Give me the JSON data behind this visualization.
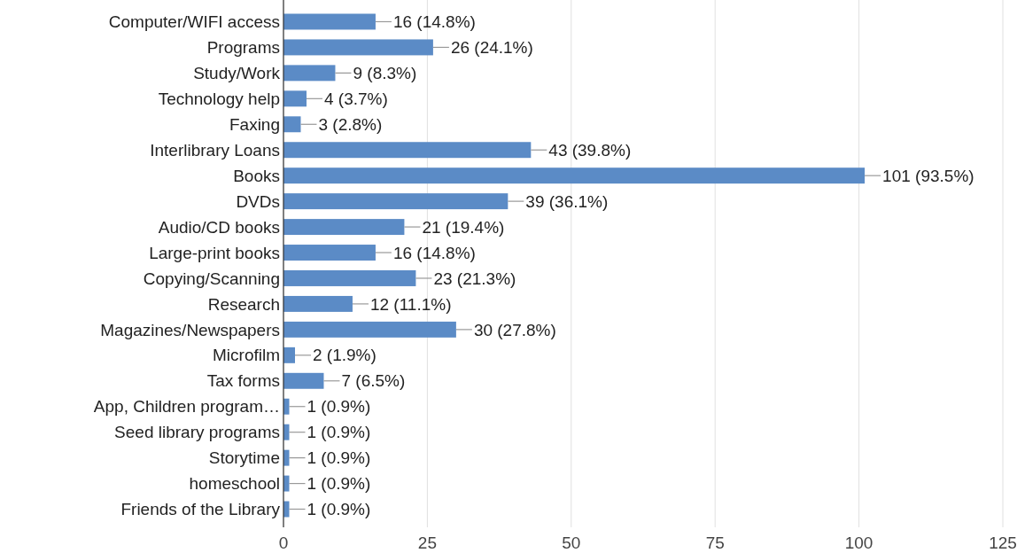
{
  "chart_data": {
    "type": "bar",
    "orientation": "horizontal",
    "categories": [
      "Computer/WIFI access",
      "Programs",
      "Study/Work",
      "Technology help",
      "Faxing",
      "Interlibrary Loans",
      "Books",
      "DVDs",
      "Audio/CD books",
      "Large-print books",
      "Copying/Scanning",
      "Research",
      "Magazines/Newspapers",
      "Microfilm",
      "Tax forms",
      "App, Children program…",
      "Seed library programs",
      "Storytime",
      "homeschool",
      "Friends of the Library"
    ],
    "values": [
      16,
      26,
      9,
      4,
      3,
      43,
      101,
      39,
      21,
      16,
      23,
      12,
      30,
      2,
      7,
      1,
      1,
      1,
      1,
      1
    ],
    "value_labels": [
      "16 (14.8%)",
      "26 (24.1%)",
      "9 (8.3%)",
      "4 (3.7%)",
      "3 (2.8%)",
      "43 (39.8%)",
      "101 (93.5%)",
      "39 (36.1%)",
      "21 (19.4%)",
      "16 (14.8%)",
      "23 (21.3%)",
      "12 (11.1%)",
      "30 (27.8%)",
      "2 (1.9%)",
      "7 (6.5%)",
      "1 (0.9%)",
      "1 (0.9%)",
      "1 (0.9%)",
      "1 (0.9%)",
      "1 (0.9%)"
    ],
    "color": "#5b8bc6",
    "xlim": [
      0,
      125
    ],
    "xticks": [
      0,
      25,
      50,
      75,
      100,
      125
    ],
    "grid": "x"
  }
}
